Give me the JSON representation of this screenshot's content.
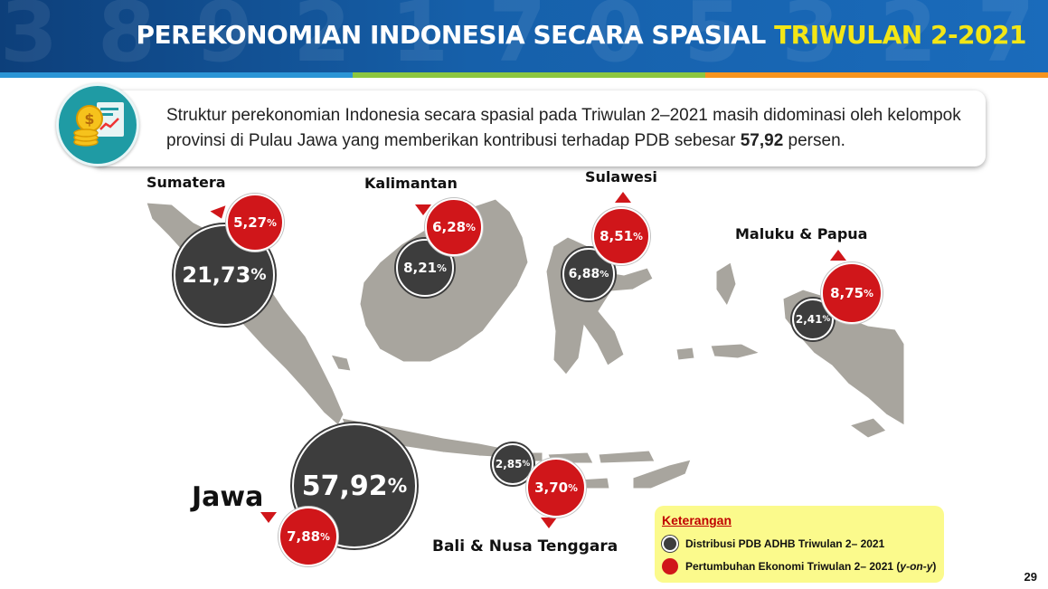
{
  "header": {
    "title_main": "PEREKONOMIAN INDONESIA SECARA SPASIAL ",
    "title_highlight": "TRIWULAN 2-2021"
  },
  "intro": {
    "text_before": "Struktur perekonomian Indonesia secara spasial pada Triwulan 2–2021 masih didominasi oleh kelompok provinsi di Pulau Jawa yang memberikan kontribusi terhadap PDB sebesar ",
    "text_bold": "57,92",
    "text_after": " persen."
  },
  "regions": {
    "sumatera": {
      "name": "Sumatera",
      "distribution": "21,73",
      "growth": "5,27"
    },
    "kalimantan": {
      "name": "Kalimantan",
      "distribution": "8,21",
      "growth": "6,28"
    },
    "sulawesi": {
      "name": "Sulawesi",
      "distribution": "6,88",
      "growth": "8,51"
    },
    "maluku": {
      "name": "Maluku & Papua",
      "distribution": "2,41",
      "growth": "8,75"
    },
    "jawa": {
      "name": "Jawa",
      "distribution": "57,92",
      "growth": "7,88"
    },
    "balinusa": {
      "name": "Bali & Nusa Tenggara",
      "distribution": "2,85",
      "growth": "3,70"
    }
  },
  "percent_sign": "%",
  "legend": {
    "title": "Keterangan",
    "distribution_label": "Distribusi PDB ADHB Triwulan 2– 2021",
    "growth_label_main": "Pertumbuhan Ekonomi Triwulan 2– 2021 (",
    "growth_label_italic": "y-on-y",
    "growth_label_close": ")"
  },
  "page_number": "29",
  "colors": {
    "header_blue": "#1660aa",
    "highlight_yellow": "#f3e616",
    "dark_bubble": "#3d3d3d",
    "red_bubble": "#d0161a",
    "map_gray": "#a8a59e",
    "legend_bg": "#fbfa8c"
  },
  "icons": {
    "intro_icon": "money-chart-icon"
  }
}
